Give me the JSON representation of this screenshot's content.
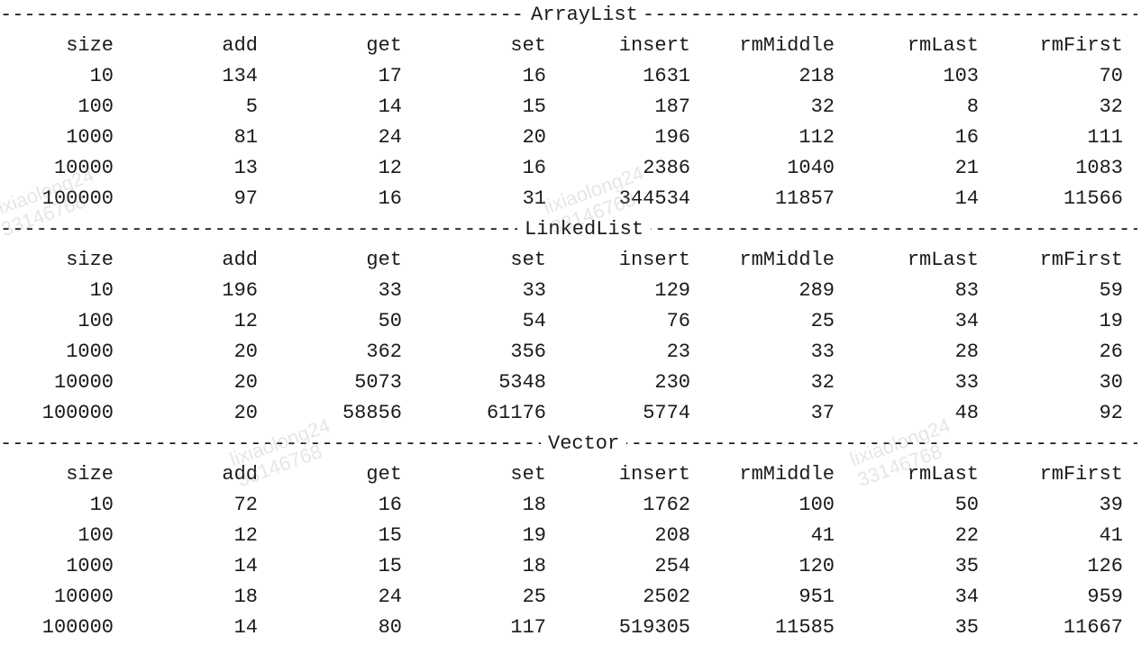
{
  "sections": [
    {
      "title": "ArrayList",
      "headers": [
        "size",
        "add",
        "get",
        "set",
        "insert",
        "rmMiddle",
        "rmLast",
        "rmFirst"
      ],
      "rows": [
        [
          "10",
          "134",
          "17",
          "16",
          "1631",
          "218",
          "103",
          "70"
        ],
        [
          "100",
          "5",
          "14",
          "15",
          "187",
          "32",
          "8",
          "32"
        ],
        [
          "1000",
          "81",
          "24",
          "20",
          "196",
          "112",
          "16",
          "111"
        ],
        [
          "10000",
          "13",
          "12",
          "16",
          "2386",
          "1040",
          "21",
          "1083"
        ],
        [
          "100000",
          "97",
          "16",
          "31",
          "344534",
          "11857",
          "14",
          "11566"
        ]
      ]
    },
    {
      "title": "LinkedList",
      "headers": [
        "size",
        "add",
        "get",
        "set",
        "insert",
        "rmMiddle",
        "rmLast",
        "rmFirst"
      ],
      "rows": [
        [
          "10",
          "196",
          "33",
          "33",
          "129",
          "289",
          "83",
          "59"
        ],
        [
          "100",
          "12",
          "50",
          "54",
          "76",
          "25",
          "34",
          "19"
        ],
        [
          "1000",
          "20",
          "362",
          "356",
          "23",
          "33",
          "28",
          "26"
        ],
        [
          "10000",
          "20",
          "5073",
          "5348",
          "230",
          "32",
          "33",
          "30"
        ],
        [
          "100000",
          "20",
          "58856",
          "61176",
          "5774",
          "37",
          "48",
          "92"
        ]
      ]
    },
    {
      "title": "Vector",
      "headers": [
        "size",
        "add",
        "get",
        "set",
        "insert",
        "rmMiddle",
        "rmLast",
        "rmFirst"
      ],
      "rows": [
        [
          "10",
          "72",
          "16",
          "18",
          "1762",
          "100",
          "50",
          "39"
        ],
        [
          "100",
          "12",
          "15",
          "19",
          "208",
          "41",
          "22",
          "41"
        ],
        [
          "1000",
          "14",
          "15",
          "18",
          "254",
          "120",
          "35",
          "126"
        ],
        [
          "10000",
          "18",
          "24",
          "25",
          "2502",
          "951",
          "34",
          "959"
        ],
        [
          "100000",
          "14",
          "80",
          "117",
          "519305",
          "11585",
          "35",
          "11667"
        ]
      ]
    }
  ],
  "watermarks": [
    "lixiaolong24\n33146768",
    "lixiaolong24\n33146768",
    "lixiaolong24\n33146768",
    "lixiaolong24\n33146768"
  ],
  "colors": {
    "text": "#1a1a1a",
    "background": "#ffffff",
    "watermark": "#8c8c8c"
  }
}
